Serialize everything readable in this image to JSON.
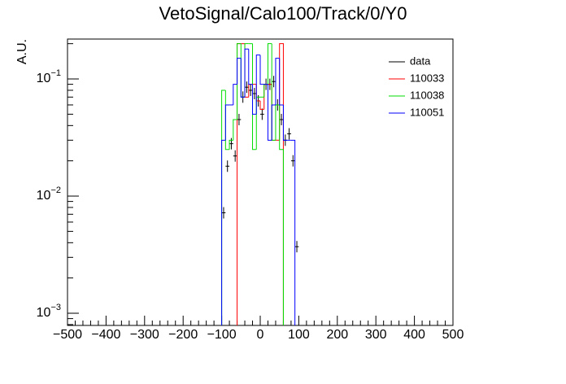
{
  "chart_data": {
    "type": "histogram",
    "title": "VetoSignal/Calo100/Track/0/Y0",
    "y_label": "A.U.",
    "log_y": true,
    "bins": [
      -100,
      -90,
      -80,
      -70,
      -60,
      -50,
      -40,
      -30,
      -20,
      -10,
      0,
      10,
      20,
      30,
      40,
      50,
      60,
      70,
      80,
      90,
      100
    ],
    "xlim": [
      -500,
      500
    ],
    "xticks": [
      {
        "value": -500,
        "label": "−500"
      },
      {
        "value": -400,
        "label": "−400"
      },
      {
        "value": -300,
        "label": "−300"
      },
      {
        "value": -200,
        "label": "−200"
      },
      {
        "value": -100,
        "label": "−100"
      },
      0,
      100,
      200,
      300,
      400,
      500
    ],
    "ylim": [
      0.000787,
      0.219
    ],
    "yticks": [
      {
        "value": 0.001,
        "label": "10",
        "exponent": "−3"
      },
      {
        "value": 0.01,
        "label": "10",
        "exponent": "−2"
      },
      {
        "value": 0.1,
        "label": "10",
        "exponent": "−1"
      }
    ],
    "legend": "top-right",
    "series": [
      {
        "name": "data",
        "color": "#000000",
        "style": "points",
        "values": [
          0.0072,
          0.018,
          0.028,
          0.022,
          0.045,
          0.07,
          0.085,
          0.08,
          0.075,
          0.065,
          0.05,
          0.09,
          0.09,
          0.095,
          0.06,
          0.045,
          0.03,
          0.034,
          0.02,
          0.0037
        ]
      },
      {
        "name": "110033",
        "color": "#ff0000",
        "style": "step",
        "values": [
          null,
          null,
          null,
          null,
          0.2,
          0.2,
          0.07,
          0.09,
          0.09,
          0.065,
          0.055,
          0.09,
          0.09,
          0.03,
          0.03,
          0.2,
          null,
          null,
          null,
          null
        ]
      },
      {
        "name": "110038",
        "color": "#00dd00",
        "style": "step",
        "values": [
          0.08,
          0.025,
          0.03,
          0.045,
          0.2,
          0.07,
          0.2,
          0.2,
          0.025,
          0.07,
          0.07,
          0.09,
          0.2,
          0.03,
          0.06,
          0.025,
          null,
          null,
          null,
          null
        ]
      },
      {
        "name": "110051",
        "color": "#0000ff",
        "style": "step",
        "values": [
          0.03,
          0.06,
          0.06,
          0.09,
          0.15,
          0.07,
          0.18,
          0.09,
          0.05,
          0.16,
          0.09,
          0.09,
          0.03,
          0.06,
          0.15,
          0.06,
          0.03,
          0.03,
          0.03,
          null
        ]
      }
    ]
  }
}
